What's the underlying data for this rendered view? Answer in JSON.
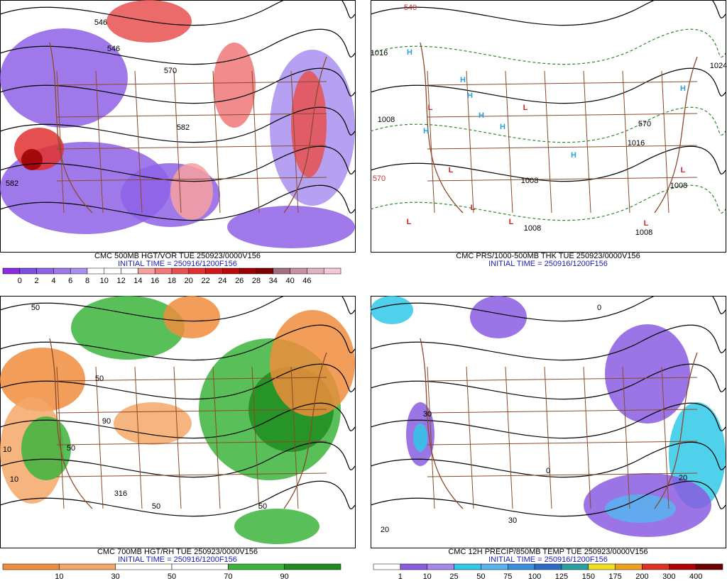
{
  "panels": [
    {
      "title": "CMC 500MB HGT/VOR TUE 250923/0000V156",
      "initial_time": "INITIAL TIME = 250916/1200F156",
      "colorbar": {
        "colors": [
          "#8a2be2",
          "#7b4fe0",
          "#8e62e6",
          "#9d7ae9",
          "#a98ff0",
          "#ffffff",
          "#ffffff",
          "#ffffff",
          "#f8a0a0",
          "#f07878",
          "#e85050",
          "#e03030",
          "#d01818",
          "#b80808",
          "#9c0000",
          "#7a0000",
          "#a07080",
          "#c890a0",
          "#e0b0c0",
          "#f4c8d8"
        ],
        "labels": [
          0,
          2,
          4,
          6,
          8,
          10,
          12,
          14,
          16,
          18,
          20,
          22,
          24,
          26,
          28,
          34,
          40,
          46
        ]
      },
      "map_labels": [
        "546",
        "546",
        "570",
        "582",
        "582"
      ],
      "symbols": []
    },
    {
      "title": "CMC PRS/1000-500MB THK TUE 250923/0000V156",
      "initial_time": "INITIAL TIME = 250916/1200F156",
      "map_labels": [
        "540",
        "1016",
        "1024",
        "1008",
        "570",
        "570",
        "1016",
        "1008",
        "1008",
        "1008",
        "1008"
      ],
      "symbols": [
        "H",
        "H",
        "H",
        "H",
        "H",
        "H",
        "H",
        "H",
        "L",
        "L",
        "L",
        "L",
        "L",
        "L",
        "L",
        "L"
      ]
    },
    {
      "title": "CMC 700MB HGT/RH TUE 250923/0000V156",
      "initial_time": "INITIAL TIME = 250916/1200F156",
      "colorbar": {
        "colors": [
          "#f08c3c",
          "#f4a868",
          "#ffffff",
          "#ffffff",
          "#3cb43c",
          "#1e8c1e"
        ],
        "labels": [
          10,
          30,
          50,
          70,
          90
        ]
      },
      "map_labels": [
        "50",
        "50",
        "90",
        "10",
        "10",
        "50",
        "50",
        "316",
        "50"
      ],
      "symbols": []
    },
    {
      "title": "CMC 12H PRECIP/850MB TEMP TUE 250923/0000V156",
      "initial_time": "INITIAL TIME = 250916/1200F156",
      "colorbar": {
        "colors": [
          "#ffffff",
          "#8a5ce0",
          "#a488ec",
          "#30c8e8",
          "#58b4f0",
          "#3a8ee0",
          "#2a6ac8",
          "#2aa0a0",
          "#f0e020",
          "#f0a020",
          "#e03020",
          "#b00000",
          "#700000"
        ],
        "labels": [
          1,
          10,
          25,
          50,
          75,
          100,
          125,
          150,
          175,
          200,
          300,
          400
        ]
      },
      "map_labels": [
        "0",
        "20",
        "30",
        "30",
        "20",
        "0"
      ],
      "symbols": []
    }
  ]
}
